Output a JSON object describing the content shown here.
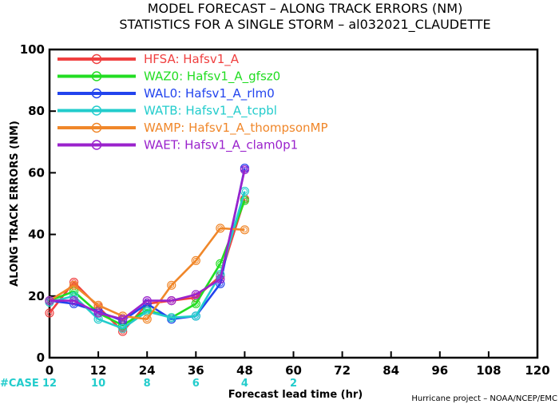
{
  "chart_data": {
    "type": "line",
    "title": "MODEL FORECAST – ALONG TRACK ERRORS (NM)",
    "subtitle": "STATISTICS FOR A SINGLE STORM – al032021_CLAUDETTE",
    "xlabel": "Forecast lead time (hr)",
    "ylabel": "ALONG TRACK ERRORS (NM)",
    "xlim": [
      0,
      120
    ],
    "ylim": [
      0,
      100
    ],
    "xticks": [
      0,
      12,
      24,
      36,
      48,
      60,
      72,
      84,
      96,
      108,
      120
    ],
    "yticks": [
      0,
      20,
      40,
      60,
      80,
      100
    ],
    "grid": false,
    "legend_position": "top-left",
    "x": [
      0,
      6,
      12,
      18,
      24,
      30,
      36,
      42,
      48
    ],
    "series": [
      {
        "name": "HFSA: Hafsv1_A",
        "color": "#f04040",
        "values": [
          14.5,
          24.5,
          16.5,
          8.5,
          17.5,
          18.5,
          19.5,
          26.5,
          51.5
        ]
      },
      {
        "name": "WAZ0: Hafsv1_A_gfsz0",
        "color": "#22dd22",
        "values": [
          18.5,
          21.5,
          14.5,
          10.5,
          15.5,
          13.0,
          17.5,
          30.5,
          51.0
        ]
      },
      {
        "name": "WAL0: Hafsv1_A_rlm0",
        "color": "#2244ee",
        "values": [
          18.5,
          17.5,
          15.0,
          12.0,
          17.5,
          12.5,
          13.5,
          24.0,
          61.5
        ]
      },
      {
        "name": "WATB: Hafsv1_A_tcpbl",
        "color": "#22cccc",
        "values": [
          18.0,
          20.0,
          12.5,
          9.5,
          15.0,
          13.0,
          13.5,
          27.0,
          54.0
        ]
      },
      {
        "name": "WAMP: Hafsv1_A_thompsonMP",
        "color": "#f0872a",
        "values": [
          18.5,
          23.5,
          17.0,
          13.5,
          12.5,
          23.5,
          31.5,
          42.0,
          41.5
        ]
      },
      {
        "name": "WAET: Hafsv1_A_clam0p1",
        "color": "#9a22cc",
        "values": [
          18.5,
          18.5,
          14.5,
          12.5,
          18.5,
          18.5,
          20.5,
          25.5,
          61.0
        ]
      }
    ],
    "case_counts": {
      "label": "#CASE",
      "x": [
        0,
        12,
        24,
        36,
        48,
        60
      ],
      "values": [
        "12",
        "10",
        "8",
        "6",
        "4",
        "2"
      ],
      "color": "#22cccc"
    },
    "credit": "Hurricane project – NOAA/NCEP/EMC"
  }
}
